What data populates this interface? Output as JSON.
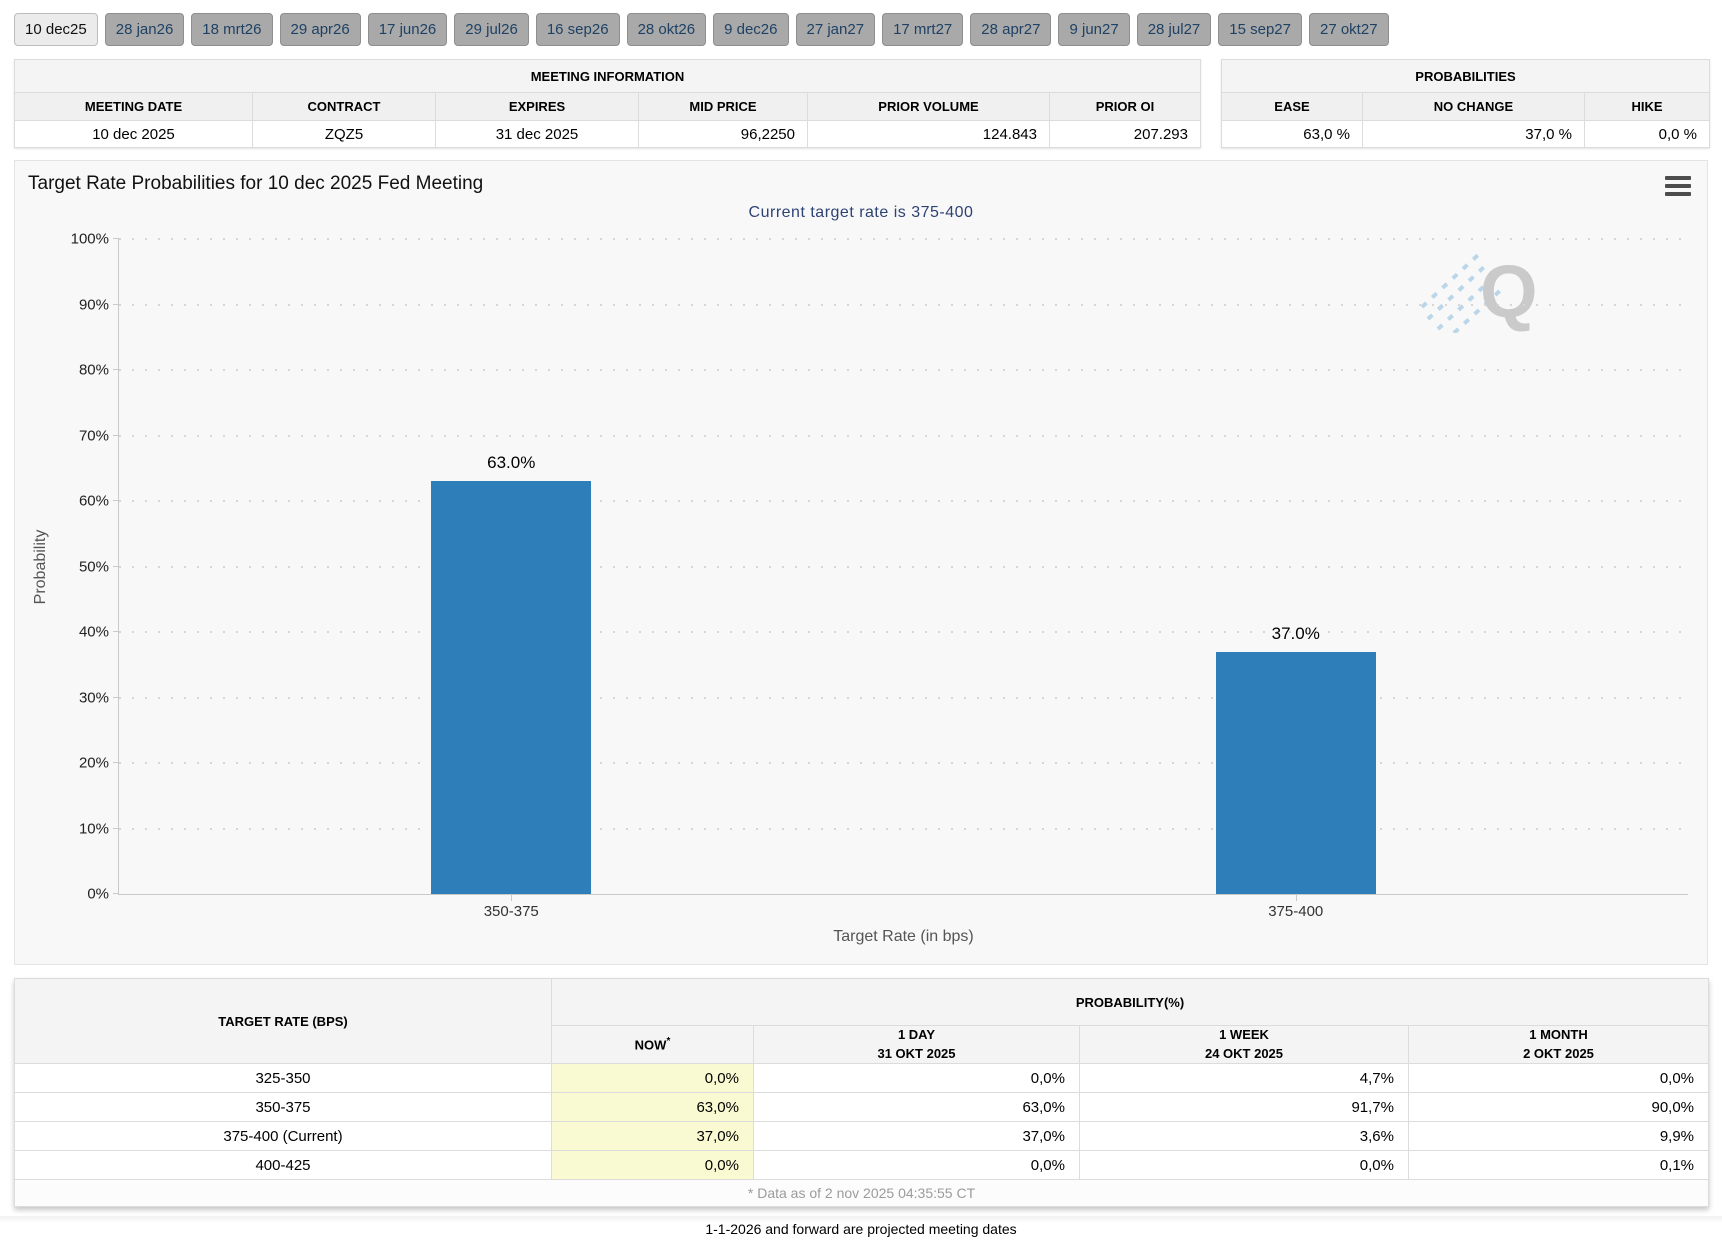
{
  "tabs": [
    {
      "label": "10 dec25",
      "active": true
    },
    {
      "label": "28 jan26",
      "active": false
    },
    {
      "label": "18 mrt26",
      "active": false
    },
    {
      "label": "29 apr26",
      "active": false
    },
    {
      "label": "17 jun26",
      "active": false
    },
    {
      "label": "29 jul26",
      "active": false
    },
    {
      "label": "16 sep26",
      "active": false
    },
    {
      "label": "28 okt26",
      "active": false
    },
    {
      "label": "9 dec26",
      "active": false
    },
    {
      "label": "27 jan27",
      "active": false
    },
    {
      "label": "17 mrt27",
      "active": false
    },
    {
      "label": "28 apr27",
      "active": false
    },
    {
      "label": "9 jun27",
      "active": false
    },
    {
      "label": "28 jul27",
      "active": false
    },
    {
      "label": "15 sep27",
      "active": false
    },
    {
      "label": "27 okt27",
      "active": false
    }
  ],
  "meeting_info": {
    "title": "MEETING INFORMATION",
    "headers": [
      "MEETING DATE",
      "CONTRACT",
      "EXPIRES",
      "MID PRICE",
      "PRIOR VOLUME",
      "PRIOR OI"
    ],
    "values": [
      "10 dec 2025",
      "ZQZ5",
      "31 dec 2025",
      "96,2250",
      "124.843",
      "207.293"
    ]
  },
  "probabilities_summary": {
    "title": "PROBABILITIES",
    "headers": [
      "EASE",
      "NO CHANGE",
      "HIKE"
    ],
    "values": [
      "63,0 %",
      "37,0 %",
      "0,0 %"
    ]
  },
  "chart": {
    "title": "Target Rate Probabilities for 10 dec 2025 Fed Meeting",
    "subtitle": "Current target rate is 375-400",
    "ylabel": "Probability",
    "xlabel": "Target Rate (in bps)",
    "menu_icon": "hamburger-menu",
    "watermark_letter": "Q"
  },
  "chart_data": {
    "type": "bar",
    "title": "Target Rate Probabilities for 10 dec 2025 Fed Meeting",
    "subtitle": "Current target rate is 375-400",
    "categories": [
      "350-375",
      "375-400"
    ],
    "values": [
      63.0,
      37.0
    ],
    "point_labels": [
      "63.0%",
      "37.0%"
    ],
    "xlabel": "Target Rate (in bps)",
    "ylabel": "Probability",
    "ylim": [
      0,
      100
    ],
    "yticks": [
      "0%",
      "10%",
      "20%",
      "30%",
      "40%",
      "50%",
      "60%",
      "70%",
      "80%",
      "90%",
      "100%"
    ],
    "grid": "dotted-horizontal",
    "legend": "none",
    "bar_color": "#2e7fb9"
  },
  "history_table": {
    "rate_header": "TARGET RATE (BPS)",
    "group_header": "PROBABILITY(%)",
    "col_now": "NOW",
    "col_now_sup": "*",
    "col_1day_line1": "1 DAY",
    "col_1day_line2": "31 OKT 2025",
    "col_1week_line1": "1 WEEK",
    "col_1week_line2": "24 OKT 2025",
    "col_1month_line1": "1 MONTH",
    "col_1month_line2": "2 OKT 2025",
    "rows": [
      {
        "rate": "325-350",
        "now": "0,0%",
        "d1": "0,0%",
        "w1": "4,7%",
        "m1": "0,0%"
      },
      {
        "rate": "350-375",
        "now": "63,0%",
        "d1": "63,0%",
        "w1": "91,7%",
        "m1": "90,0%"
      },
      {
        "rate": "375-400 (Current)",
        "now": "37,0%",
        "d1": "37,0%",
        "w1": "3,6%",
        "m1": "9,9%"
      },
      {
        "rate": "400-425",
        "now": "0,0%",
        "d1": "0,0%",
        "w1": "0,0%",
        "m1": "0,1%"
      }
    ],
    "footnote": "* Data as of 2 nov 2025 04:35:55 CT"
  },
  "footer_note": "1-1-2026 and forward are projected meeting dates",
  "colors": {
    "bar": "#2e7fb9",
    "now_highlight": "#fafad2",
    "subtitle_blue": "#2d4373",
    "navy_bar": "#234a70",
    "tab_inactive_bg": "#a9a9a9",
    "tab_text": "#1e4164"
  }
}
